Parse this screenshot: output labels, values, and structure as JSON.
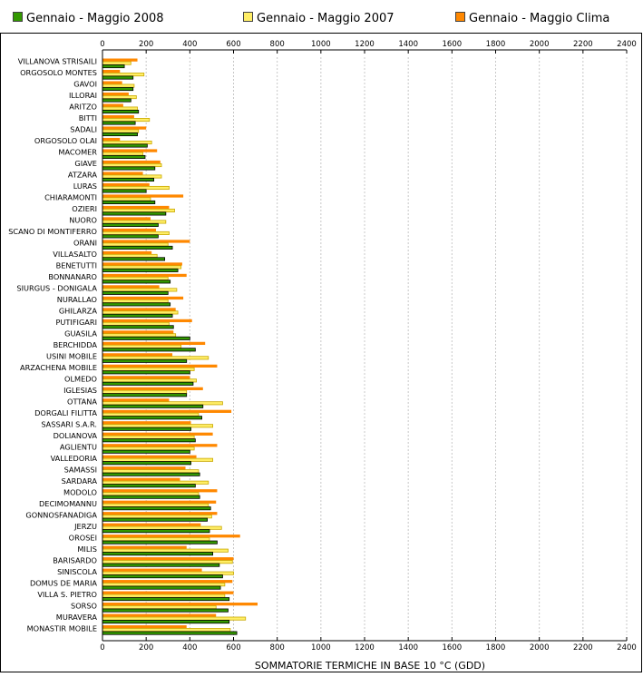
{
  "chart_data": {
    "type": "bar",
    "orientation": "horizontal",
    "xlabel": "SOMMATORIE TERMICHE IN BASE 10 °C (GDD)",
    "xlim": [
      0,
      2400
    ],
    "xticks": [
      0,
      200,
      400,
      600,
      800,
      1000,
      1200,
      1400,
      1600,
      1800,
      2000,
      2200,
      2400
    ],
    "grid": true,
    "legend_position": "top",
    "categories": [
      "VILLANOVA STRISAILI",
      "ORGOSOLO MONTES",
      "GAVOI",
      "ILLORAI",
      "ARITZO",
      "BITTI",
      "SADALI",
      "ORGOSOLO OLAI",
      "MACOMER",
      "GIAVE",
      "ATZARA",
      "LURAS",
      "CHIARAMONTI",
      "OZIERI",
      "NUORO",
      "SCANO DI MONTIFERRO",
      "ORANI",
      "VILLASALTO",
      "BENETUTTI",
      "BONNANARO",
      "SIURGUS - DONIGALA",
      "NURALLAO",
      "GHILARZA",
      "PUTIFIGARI",
      "GUASILA",
      "BERCHIDDA",
      "USINI MOBILE",
      "ARZACHENA MOBILE",
      "OLMEDO",
      "IGLESIAS",
      "OTTANA",
      "DORGALI FILITTA",
      "SASSARI S.A.R.",
      "DOLIANOVA",
      "AGLIENTU",
      "VALLEDORIA",
      "SAMASSI",
      "SARDARA",
      "MODOLO",
      "DECIMOMANNU",
      "GONNOSFANADIGA",
      "JERZU",
      "OROSEI",
      "MILIS",
      "BARISARDO",
      "SINISCOLA",
      "DOMUS DE MARIA",
      "VILLA S. PIETRO",
      "SORSO",
      "MURAVERA",
      "MONASTIR MOBILE"
    ],
    "series": [
      {
        "name": "Gennaio - Maggio 2008",
        "color": "#339900",
        "values": [
          100,
          140,
          140,
          130,
          165,
          150,
          160,
          205,
          195,
          240,
          235,
          200,
          240,
          290,
          255,
          255,
          320,
          285,
          345,
          310,
          300,
          310,
          320,
          325,
          400,
          425,
          385,
          400,
          415,
          385,
          460,
          455,
          405,
          425,
          400,
          405,
          445,
          425,
          445,
          495,
          480,
          490,
          525,
          505,
          535,
          550,
          540,
          580,
          575,
          580,
          615
        ]
      },
      {
        "name": "Gennaio - Maggio 2007",
        "color": "#ffee66",
        "values": [
          130,
          190,
          145,
          155,
          160,
          215,
          165,
          225,
          185,
          270,
          270,
          305,
          220,
          330,
          290,
          305,
          300,
          250,
          360,
          300,
          340,
          300,
          345,
          305,
          335,
          360,
          485,
          420,
          430,
          385,
          550,
          440,
          505,
          420,
          420,
          505,
          440,
          485,
          440,
          485,
          500,
          545,
          490,
          575,
          595,
          600,
          560,
          560,
          520,
          655,
          585
        ]
      },
      {
        "name": "Gennaio - Maggio Clima",
        "color": "#ff8800",
        "values": [
          160,
          80,
          90,
          120,
          95,
          145,
          200,
          80,
          250,
          265,
          185,
          215,
          370,
          305,
          220,
          245,
          400,
          225,
          365,
          385,
          260,
          370,
          335,
          410,
          325,
          470,
          320,
          525,
          400,
          460,
          305,
          590,
          405,
          505,
          525,
          430,
          380,
          355,
          525,
          520,
          525,
          450,
          630,
          385,
          600,
          455,
          595,
          600,
          710,
          520,
          385
        ]
      }
    ]
  }
}
